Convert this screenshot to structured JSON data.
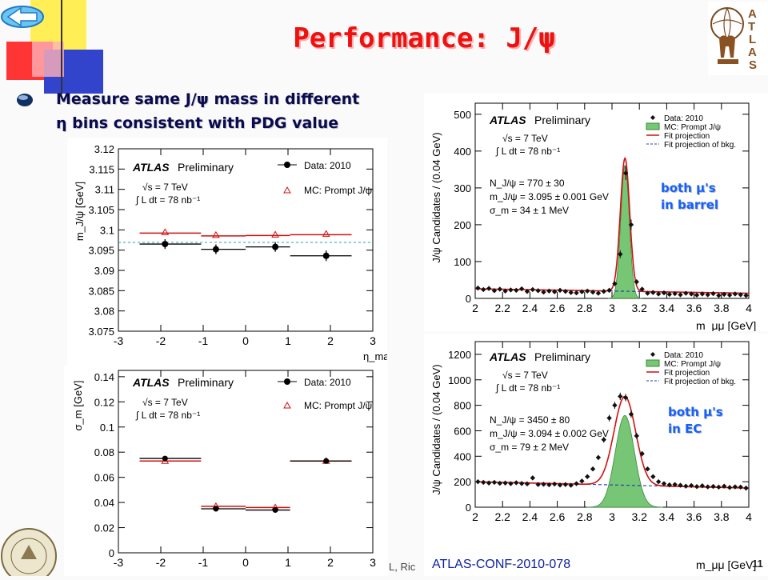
{
  "slide": {
    "title": "Performance: J/ψ",
    "bullet_line1": "Measure same J/ψ mass in different",
    "bullet_line2": "η bins consistent with PDG value",
    "reference": "ATLAS-CONF-2010-078",
    "footer_fragment": "L, Ric",
    "page_number": "11"
  },
  "annotations": {
    "barrel_line1": "both μ's",
    "barrel_line2": "in barrel",
    "ec_line1": "both μ's",
    "ec_line2": "in EC"
  },
  "colors": {
    "title": "#ee1111",
    "annotation": "#1560ff",
    "fit_line": "#d01010",
    "mc_fill": "#76c676",
    "bkg_line": "#2244aa",
    "pdg_line": "#22aaaa",
    "corner_yellow": "#ffee55",
    "corner_red": "#ff3030",
    "corner_blue": "#3344cc"
  },
  "chart_data": [
    {
      "type": "scatter",
      "atlas": "ATLAS",
      "prelim": "Preliminary",
      "energy": "√s = 7 TeV",
      "lumi": "∫ L dt = 78 nb⁻¹",
      "ylabel": "m_J/ψ [GeV]",
      "xlabel": "η_max",
      "xlim": [
        -3,
        3
      ],
      "ylim": [
        3.075,
        3.12
      ],
      "xticks": [
        "-3",
        "-2",
        "-1",
        "0",
        "1",
        "2",
        "3"
      ],
      "yticks": [
        "3.075",
        "3.08",
        "3.085",
        "3.09",
        "3.095",
        "3.1",
        "3.105",
        "3.11",
        "3.115",
        "3.12"
      ],
      "legend": [
        "Data: 2010",
        "MC: Prompt J/ψ"
      ],
      "bins": [
        [
          -2.5,
          -1.05
        ],
        [
          -1.05,
          0
        ],
        [
          0,
          1.05
        ],
        [
          1.05,
          2.5
        ]
      ],
      "data": {
        "x": [
          -1.9,
          -0.7,
          0.7,
          1.9
        ],
        "y": [
          3.0965,
          3.0952,
          3.0958,
          3.0936
        ],
        "yerr": [
          0.0012,
          0.0012,
          0.0012,
          0.0013
        ]
      },
      "mc": {
        "x": [
          -1.9,
          -0.7,
          0.7,
          1.9
        ],
        "y": [
          3.0992,
          3.0985,
          3.0986,
          3.0988
        ]
      },
      "pdg": 3.0969
    },
    {
      "type": "scatter",
      "atlas": "ATLAS",
      "prelim": "Preliminary",
      "energy": "√s = 7 TeV",
      "lumi": "∫ L dt = 78 nb⁻¹",
      "ylabel": "σ_m [GeV]",
      "xlim": [
        -3,
        3
      ],
      "ylim": [
        0,
        0.145
      ],
      "xticks": [
        "-3",
        "-2",
        "-1",
        "0",
        "1",
        "2",
        "3"
      ],
      "yticks": [
        "0",
        "0.02",
        "0.04",
        "0.06",
        "0.08",
        "0.1",
        "0.12",
        "0.14"
      ],
      "legend": [
        "Data: 2010",
        "MC: Prompt J/ψ"
      ],
      "bins": [
        [
          -2.5,
          -1.05
        ],
        [
          -1.05,
          0
        ],
        [
          0,
          1.05
        ],
        [
          1.05,
          2.5
        ]
      ],
      "data": {
        "x": [
          -1.9,
          -0.7,
          0.7,
          1.9
        ],
        "y": [
          0.075,
          0.035,
          0.034,
          0.073
        ],
        "yerr": [
          0.002,
          0.001,
          0.001,
          0.002
        ]
      },
      "mc": {
        "x": [
          -1.9,
          -0.7,
          0.7,
          1.9
        ],
        "y": [
          0.073,
          0.037,
          0.036,
          0.073
        ]
      }
    },
    {
      "type": "scatter",
      "atlas": "ATLAS",
      "prelim": "Preliminary",
      "energy": "√s = 7 TeV",
      "lumi": "∫ L dt = 78 nb⁻¹",
      "ylabel": "J/ψ Candidates / (0.04 GeV)",
      "xlabel": "m_μμ [GeV]",
      "xlim": [
        2,
        4
      ],
      "ylim": [
        0,
        530
      ],
      "xticks": [
        "2",
        "2.2",
        "2.4",
        "2.6",
        "2.8",
        "3",
        "3.2",
        "3.4",
        "3.6",
        "3.8",
        "4"
      ],
      "yticks": [
        "0",
        "100",
        "200",
        "300",
        "400",
        "500"
      ],
      "legend": [
        "Data: 2010",
        "MC: Prompt J/ψ",
        "Fit projection",
        "Fit projection of bkg."
      ],
      "stats": [
        "N_J/ψ = 770 ± 30",
        "m_J/ψ = 3.095 ± 0.001 GeV",
        "σ_m = 34 ± 1 MeV"
      ],
      "fit": {
        "N": 770,
        "mean": 3.095,
        "sigma": 0.034,
        "bkg_a": 26,
        "bkg_b": -6
      },
      "mc_sigma": 0.031,
      "data": {
        "x": [
          2.02,
          2.06,
          2.1,
          2.14,
          2.18,
          2.22,
          2.26,
          2.3,
          2.34,
          2.38,
          2.42,
          2.46,
          2.5,
          2.54,
          2.58,
          2.62,
          2.66,
          2.7,
          2.74,
          2.78,
          2.82,
          2.86,
          2.9,
          2.94,
          2.98,
          3.02,
          3.06,
          3.1,
          3.14,
          3.18,
          3.22,
          3.26,
          3.3,
          3.34,
          3.38,
          3.42,
          3.46,
          3.5,
          3.54,
          3.58,
          3.62,
          3.66,
          3.7,
          3.74,
          3.78,
          3.82,
          3.86,
          3.9,
          3.94,
          3.98
        ],
        "y": [
          28,
          24,
          27,
          21,
          25,
          20,
          23,
          22,
          26,
          19,
          24,
          21,
          17,
          20,
          18,
          22,
          19,
          16,
          15,
          18,
          20,
          17,
          14,
          19,
          22,
          40,
          120,
          340,
          200,
          45,
          25,
          14,
          16,
          12,
          15,
          11,
          13,
          10,
          14,
          12,
          9,
          12,
          10,
          13,
          8,
          11,
          9,
          12,
          10,
          8
        ]
      }
    },
    {
      "type": "scatter",
      "atlas": "ATLAS",
      "prelim": "Preliminary",
      "energy": "√s = 7 TeV",
      "lumi": "∫ L dt = 78 nb⁻¹",
      "ylabel": "J/ψ Candidates / (0.04 GeV)",
      "xlabel": "m_μμ [GeV]",
      "xlim": [
        2,
        4
      ],
      "ylim": [
        0,
        1300
      ],
      "xticks": [
        "2",
        "2.2",
        "2.4",
        "2.6",
        "2.8",
        "3",
        "3.2",
        "3.4",
        "3.6",
        "3.8",
        "4"
      ],
      "yticks": [
        "0",
        "200",
        "400",
        "600",
        "800",
        "1000",
        "1200"
      ],
      "legend": [
        "Data: 2010",
        "MC: Prompt J/ψ",
        "Fit projection",
        "Fit projection of bkg."
      ],
      "stats": [
        "N_J/ψ = 3450 ± 80",
        "m_J/ψ = 3.094 ± 0.002 GeV",
        "σ_m = 79 ± 2 MeV"
      ],
      "fit": {
        "N": 3450,
        "mean": 3.094,
        "sigma": 0.079,
        "bkg_a": 200,
        "bkg_b": -25
      },
      "mc_peak": 720,
      "mc_sigma": 0.07,
      "data": {
        "x": [
          2.02,
          2.06,
          2.1,
          2.14,
          2.18,
          2.22,
          2.26,
          2.3,
          2.34,
          2.38,
          2.42,
          2.46,
          2.5,
          2.54,
          2.58,
          2.62,
          2.66,
          2.7,
          2.74,
          2.78,
          2.82,
          2.86,
          2.9,
          2.94,
          2.98,
          3.02,
          3.06,
          3.1,
          3.14,
          3.18,
          3.22,
          3.26,
          3.3,
          3.34,
          3.38,
          3.42,
          3.46,
          3.5,
          3.54,
          3.58,
          3.62,
          3.66,
          3.7,
          3.74,
          3.78,
          3.82,
          3.86,
          3.9,
          3.94,
          3.98
        ],
        "y": [
          200,
          195,
          190,
          195,
          188,
          190,
          185,
          192,
          186,
          183,
          230,
          178,
          180,
          176,
          182,
          174,
          178,
          172,
          185,
          205,
          240,
          300,
          390,
          530,
          700,
          800,
          870,
          860,
          730,
          560,
          420,
          300,
          240,
          200,
          185,
          175,
          178,
          172,
          165,
          170,
          162,
          168,
          160,
          163,
          158,
          165,
          155,
          160,
          158,
          150
        ]
      }
    }
  ]
}
